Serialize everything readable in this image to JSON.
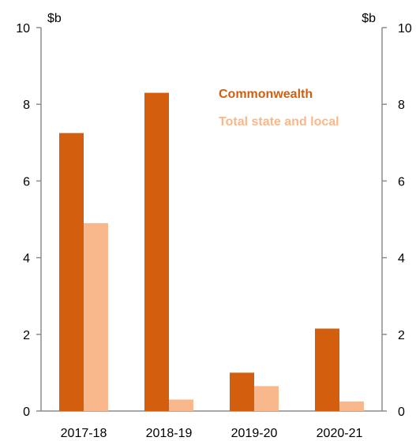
{
  "chart_data": {
    "type": "bar",
    "categories": [
      "2017-18",
      "2018-19",
      "2019-20",
      "2020-21"
    ],
    "series": [
      {
        "name": "Commonwealth",
        "color": "#D35F0E",
        "values": [
          7.25,
          8.3,
          1.0,
          2.15
        ]
      },
      {
        "name": "Total state and local",
        "color": "#F8B88B",
        "values": [
          4.9,
          0.3,
          0.65,
          0.25
        ]
      }
    ],
    "y_unit_left": "$b",
    "y_unit_right": "$b",
    "ylim": [
      0,
      10
    ],
    "yticks": [
      0,
      2,
      4,
      6,
      8,
      10
    ],
    "legend_position": "top-right",
    "grid": false
  }
}
